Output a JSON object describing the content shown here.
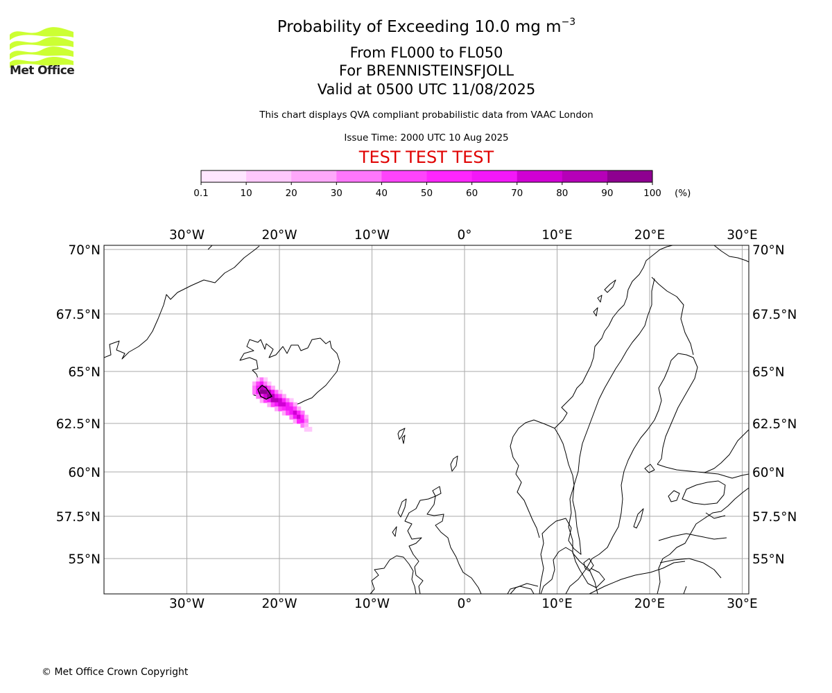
{
  "header": {
    "title_main": "Probability of Exceeding 10.0 mg m",
    "title_exponent": "−3",
    "title_levels": "From FL000 to FL050",
    "title_volcano": "For BRENNISTEINSFJOLL",
    "title_valid": "Valid at 0500 UTC 11/08/2025",
    "subtitle": "This chart displays QVA compliant probabilistic data from VAAC London",
    "issue_time": "Issue Time: 2000 UTC 10 Aug 2025",
    "test_banner": "TEST TEST TEST"
  },
  "logo": {
    "text": "Met Office",
    "icon": "met-office-wave-logo",
    "color": "#ccff33"
  },
  "colorbar": {
    "tick_labels": [
      "0.1",
      "10",
      "20",
      "30",
      "40",
      "50",
      "60",
      "70",
      "80",
      "90",
      "100"
    ],
    "unit": "(%)",
    "colors": [
      "#ffe6ff",
      "#ffc8fc",
      "#ffa8fa",
      "#ff77fb",
      "#ff44fb",
      "#ff26fd",
      "#f318f8",
      "#d000d4",
      "#b600b8",
      "#8e0090",
      "#650068"
    ]
  },
  "map": {
    "longitude_labels": [
      "30°W",
      "20°W",
      "10°W",
      "0°",
      "10°E",
      "20°E",
      "30°E"
    ],
    "longitudes": [
      -30,
      -20,
      -10,
      0,
      10,
      20,
      30
    ],
    "latitude_labels": [
      "70°N",
      "67.5°N",
      "65°N",
      "62.5°N",
      "60°N",
      "57.5°N",
      "55°N"
    ],
    "latitudes": [
      70,
      67.5,
      65,
      62.5,
      60,
      57.5,
      55
    ],
    "lon_range": [
      -38.8,
      30.5
    ],
    "lat_range": [
      53.2,
      70.2
    ],
    "land_labels": [],
    "plume": {
      "description_color_scale": "probability percent",
      "cells": [
        {
          "lat": 64.6,
          "lon": -22.3,
          "p": 10
        },
        {
          "lat": 64.6,
          "lon": -21.9,
          "p": 30
        },
        {
          "lat": 64.6,
          "lon": -21.5,
          "p": 10
        },
        {
          "lat": 64.4,
          "lon": -22.7,
          "p": 20
        },
        {
          "lat": 64.4,
          "lon": -22.3,
          "p": 40
        },
        {
          "lat": 64.4,
          "lon": -21.9,
          "p": 60
        },
        {
          "lat": 64.4,
          "lon": -21.5,
          "p": 30
        },
        {
          "lat": 64.4,
          "lon": -21.1,
          "p": 10
        },
        {
          "lat": 64.2,
          "lon": -22.7,
          "p": 30
        },
        {
          "lat": 64.2,
          "lon": -22.3,
          "p": 60
        },
        {
          "lat": 64.2,
          "lon": -21.9,
          "p": 80
        },
        {
          "lat": 64.2,
          "lon": -21.5,
          "p": 70
        },
        {
          "lat": 64.2,
          "lon": -21.1,
          "p": 40
        },
        {
          "lat": 64.2,
          "lon": -20.7,
          "p": 20
        },
        {
          "lat": 64.0,
          "lon": -22.7,
          "p": 30
        },
        {
          "lat": 64.0,
          "lon": -22.3,
          "p": 60
        },
        {
          "lat": 64.0,
          "lon": -21.9,
          "p": 90
        },
        {
          "lat": 64.0,
          "lon": -21.5,
          "p": 90
        },
        {
          "lat": 64.0,
          "lon": -21.1,
          "p": 80
        },
        {
          "lat": 64.0,
          "lon": -20.7,
          "p": 60
        },
        {
          "lat": 64.0,
          "lon": -20.3,
          "p": 30
        },
        {
          "lat": 64.0,
          "lon": -19.9,
          "p": 10
        },
        {
          "lat": 63.8,
          "lon": -22.3,
          "p": 30
        },
        {
          "lat": 63.8,
          "lon": -21.9,
          "p": 50
        },
        {
          "lat": 63.8,
          "lon": -21.5,
          "p": 70
        },
        {
          "lat": 63.8,
          "lon": -21.1,
          "p": 90
        },
        {
          "lat": 63.8,
          "lon": -20.7,
          "p": 80
        },
        {
          "lat": 63.8,
          "lon": -20.3,
          "p": 60
        },
        {
          "lat": 63.8,
          "lon": -19.9,
          "p": 40
        },
        {
          "lat": 63.8,
          "lon": -19.5,
          "p": 20
        },
        {
          "lat": 63.6,
          "lon": -21.9,
          "p": 20
        },
        {
          "lat": 63.6,
          "lon": -21.5,
          "p": 40
        },
        {
          "lat": 63.6,
          "lon": -21.1,
          "p": 60
        },
        {
          "lat": 63.6,
          "lon": -20.7,
          "p": 80
        },
        {
          "lat": 63.6,
          "lon": -20.3,
          "p": 80
        },
        {
          "lat": 63.6,
          "lon": -19.9,
          "p": 70
        },
        {
          "lat": 63.6,
          "lon": -19.5,
          "p": 50
        },
        {
          "lat": 63.6,
          "lon": -19.1,
          "p": 30
        },
        {
          "lat": 63.6,
          "lon": -18.7,
          "p": 10
        },
        {
          "lat": 63.4,
          "lon": -21.1,
          "p": 20
        },
        {
          "lat": 63.4,
          "lon": -20.7,
          "p": 40
        },
        {
          "lat": 63.4,
          "lon": -20.3,
          "p": 60
        },
        {
          "lat": 63.4,
          "lon": -19.9,
          "p": 70
        },
        {
          "lat": 63.4,
          "lon": -19.5,
          "p": 70
        },
        {
          "lat": 63.4,
          "lon": -19.1,
          "p": 60
        },
        {
          "lat": 63.4,
          "lon": -18.7,
          "p": 40
        },
        {
          "lat": 63.4,
          "lon": -18.3,
          "p": 20
        },
        {
          "lat": 63.2,
          "lon": -20.3,
          "p": 20
        },
        {
          "lat": 63.2,
          "lon": -19.9,
          "p": 40
        },
        {
          "lat": 63.2,
          "lon": -19.5,
          "p": 50
        },
        {
          "lat": 63.2,
          "lon": -19.1,
          "p": 60
        },
        {
          "lat": 63.2,
          "lon": -18.7,
          "p": 60
        },
        {
          "lat": 63.2,
          "lon": -18.3,
          "p": 40
        },
        {
          "lat": 63.2,
          "lon": -17.9,
          "p": 20
        },
        {
          "lat": 63.0,
          "lon": -19.5,
          "p": 20
        },
        {
          "lat": 63.0,
          "lon": -19.1,
          "p": 40
        },
        {
          "lat": 63.0,
          "lon": -18.7,
          "p": 60
        },
        {
          "lat": 63.0,
          "lon": -18.3,
          "p": 70
        },
        {
          "lat": 63.0,
          "lon": -17.9,
          "p": 50
        },
        {
          "lat": 63.0,
          "lon": -17.5,
          "p": 30
        },
        {
          "lat": 62.8,
          "lon": -18.7,
          "p": 30
        },
        {
          "lat": 62.8,
          "lon": -18.3,
          "p": 60
        },
        {
          "lat": 62.8,
          "lon": -17.9,
          "p": 70
        },
        {
          "lat": 62.8,
          "lon": -17.5,
          "p": 50
        },
        {
          "lat": 62.8,
          "lon": -17.1,
          "p": 20
        },
        {
          "lat": 62.6,
          "lon": -18.3,
          "p": 20
        },
        {
          "lat": 62.6,
          "lon": -17.9,
          "p": 50
        },
        {
          "lat": 62.6,
          "lon": -17.5,
          "p": 60
        },
        {
          "lat": 62.6,
          "lon": -17.1,
          "p": 30
        },
        {
          "lat": 62.4,
          "lon": -17.5,
          "p": 30
        },
        {
          "lat": 62.4,
          "lon": -17.1,
          "p": 20
        },
        {
          "lat": 62.2,
          "lon": -17.1,
          "p": 10
        },
        {
          "lat": 62.2,
          "lon": -16.7,
          "p": 10
        }
      ]
    }
  },
  "footer": {
    "copyright": "© Met Office Crown Copyright"
  }
}
